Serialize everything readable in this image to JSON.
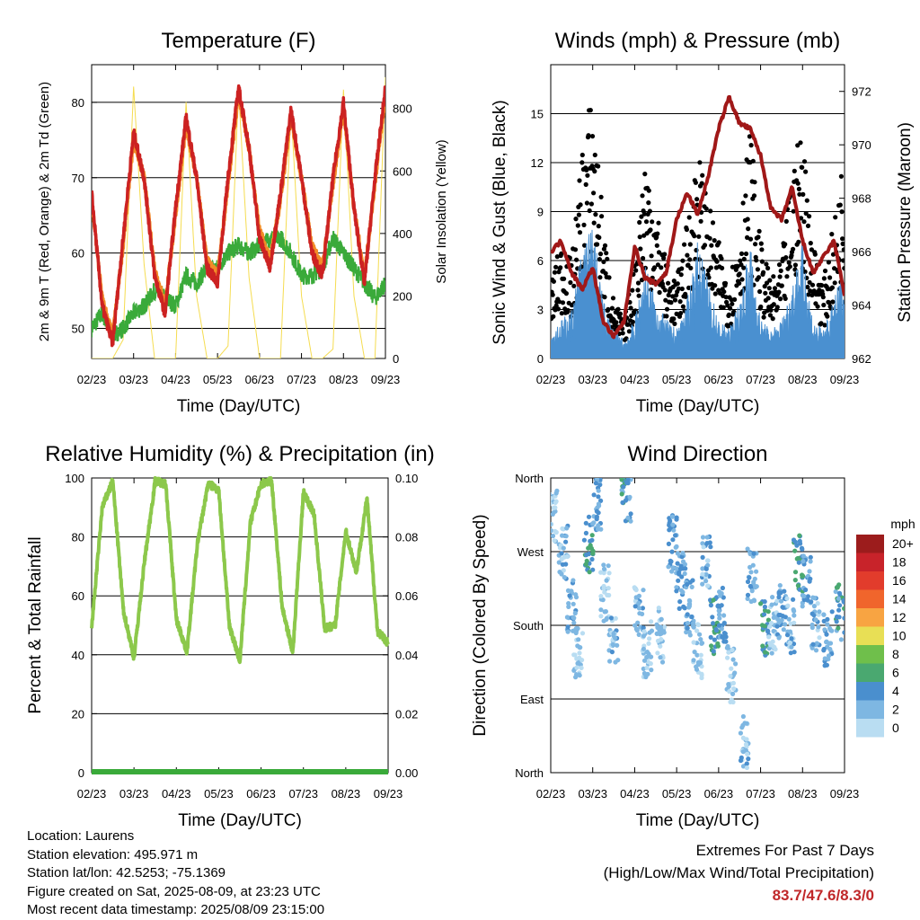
{
  "colors": {
    "temp2m": "#cc2222",
    "temp9m": "#f28c28",
    "dewpoint": "#3aaa3a",
    "solar": "#f5dc50",
    "wind": "#4a90d0",
    "gust": "#000000",
    "pressure": "#a01818",
    "rh": "#8cc84b",
    "precip": "#3aaa3a",
    "extremes": "#c0282a"
  },
  "x_ticks": [
    "02/23",
    "03/23",
    "04/23",
    "05/23",
    "06/23",
    "07/23",
    "08/23",
    "09/23"
  ],
  "panels": {
    "temperature": {
      "title": "Temperature (F)",
      "xlabel": "Time (Day/UTC)",
      "ylabel_left": "2m & 9m T (Red, Orange) & 2m Td (Green)",
      "ylabel_right": "Solar Insolation (Yellow)",
      "left_ticks": [
        "50",
        "60",
        "70",
        "80"
      ],
      "right_ticks": [
        "0",
        "200",
        "400",
        "600",
        "800"
      ]
    },
    "winds": {
      "title": "Winds (mph) & Pressure (mb)",
      "xlabel": "Time (Day/UTC)",
      "ylabel_left": "Sonic Wind & Gust (Blue, Black)",
      "ylabel_right": "Station Pressure (Maroon)",
      "left_ticks": [
        "0",
        "3",
        "6",
        "9",
        "12",
        "15"
      ],
      "right_ticks": [
        "962",
        "964",
        "966",
        "968",
        "970",
        "972"
      ]
    },
    "humidity": {
      "title": "Relative Humidity (%) & Precipitation (in)",
      "xlabel": "Time (Day/UTC)",
      "ylabel_left": "Percent & Total Rainfall",
      "left_ticks": [
        "0",
        "20",
        "40",
        "60",
        "80",
        "100"
      ],
      "right_ticks": [
        "0.00",
        "0.02",
        "0.04",
        "0.06",
        "0.08",
        "0.10"
      ]
    },
    "direction": {
      "title": "Wind Direction",
      "xlabel": "Time (Day/UTC)",
      "ylabel_left": "Direction (Colored By Speed)",
      "left_ticks": [
        "North",
        "East",
        "South",
        "West",
        "North"
      ],
      "legend_title": "mph",
      "legend_labels": [
        "20+",
        "18",
        "16",
        "14",
        "12",
        "10",
        "8",
        "6",
        "4",
        "2",
        "0"
      ],
      "legend_colors": [
        "#9c1c1c",
        "#c8232a",
        "#e23c2c",
        "#f0652c",
        "#f8a442",
        "#e8df55",
        "#6fbf4b",
        "#4aa870",
        "#4a8fce",
        "#7eb7e2",
        "#b9ddf2"
      ]
    }
  },
  "info": {
    "location": "Location: Laurens",
    "elevation": "Station elevation: 495.971 m",
    "latlon": "Station lat/lon: 42.5253; -75.1369",
    "created": "Figure created on Sat, 2025-08-09, at 23:23 UTC",
    "recent": "Most recent data timestamp: 2025/08/09 23:15:00"
  },
  "extremes": {
    "heading": "Extremes For Past 7 Days",
    "subheading": "(High/Low/Max Wind/Total Precipitation)",
    "values": "83.7/47.6/8.3/0"
  },
  "chart_data": [
    {
      "type": "line",
      "title": "Temperature (F)",
      "xlabel": "Time (Day/UTC)",
      "ylabel": "2m & 9m T (Red, Orange) & 2m Td (Green)",
      "y2label": "Solar Insolation (Yellow)",
      "ylim": [
        46,
        85
      ],
      "y2lim": [
        0,
        940
      ],
      "x": [
        0,
        0.25,
        0.5,
        0.75,
        1.0,
        1.25,
        1.5,
        1.75,
        2.0,
        2.25,
        2.5,
        2.75,
        3.0,
        3.25,
        3.5,
        3.75,
        4.0,
        4.25,
        4.5,
        4.75,
        5.0,
        5.25,
        5.5,
        5.75,
        6.0,
        6.25,
        6.5,
        6.75,
        7.0
      ],
      "series": [
        {
          "name": "2m T",
          "values": [
            68,
            53,
            48,
            62,
            76,
            70,
            57,
            52,
            66,
            78,
            70,
            58,
            56,
            70,
            82,
            74,
            62,
            58,
            68,
            79,
            70,
            60,
            57,
            70,
            80,
            66,
            56,
            70,
            82
          ]
        },
        {
          "name": "9m T",
          "values": [
            67,
            54,
            49,
            61,
            75,
            70,
            58,
            53,
            65,
            77,
            70,
            59,
            57,
            69,
            81,
            74,
            63,
            59,
            67,
            78,
            70,
            61,
            58,
            69,
            79,
            66,
            57,
            69,
            81
          ]
        },
        {
          "name": "2m Td",
          "values": [
            50,
            52,
            49,
            50,
            52,
            53,
            55,
            54,
            53,
            57,
            56,
            58,
            58,
            60,
            61,
            60,
            61,
            62,
            62,
            60,
            57,
            57,
            58,
            62,
            60,
            58,
            56,
            54,
            56
          ]
        },
        {
          "name": "Solar",
          "values": [
            0,
            0,
            0,
            60,
            870,
            300,
            0,
            0,
            0,
            820,
            200,
            0,
            0,
            40,
            860,
            260,
            0,
            0,
            0,
            800,
            200,
            0,
            0,
            30,
            860,
            200,
            0,
            0,
            900
          ]
        }
      ]
    },
    {
      "type": "line",
      "title": "Winds (mph) & Pressure (mb)",
      "xlabel": "Time (Day/UTC)",
      "ylabel": "Sonic Wind & Gust (Blue, Black)",
      "y2label": "Station Pressure (Maroon)",
      "ylim": [
        0,
        18
      ],
      "y2lim": [
        962,
        973
      ],
      "x": [
        0,
        0.25,
        0.5,
        0.75,
        1.0,
        1.25,
        1.5,
        1.75,
        2.0,
        2.25,
        2.5,
        2.75,
        3.0,
        3.25,
        3.5,
        3.75,
        4.0,
        4.25,
        4.5,
        4.75,
        5.0,
        5.25,
        5.5,
        5.75,
        6.0,
        6.25,
        6.5,
        6.75,
        7.0
      ],
      "series": [
        {
          "name": "Pressure",
          "values": [
            966,
            966.4,
            965.2,
            964.6,
            965.4,
            963.4,
            962.8,
            963.4,
            966.2,
            965.0,
            964.8,
            965.2,
            967.2,
            968.2,
            967.4,
            968.8,
            970.6,
            971.8,
            970.8,
            970.6,
            969.6,
            967.6,
            967.2,
            968.4,
            966.4,
            965.2,
            965.8,
            966.4,
            964.4
          ]
        },
        {
          "name": "Wind",
          "values": [
            1.5,
            2,
            2.5,
            6,
            7,
            3,
            1.5,
            1,
            2,
            5,
            3,
            2,
            1.5,
            3,
            6,
            4,
            2,
            1.5,
            3,
            6,
            2,
            1.5,
            2,
            4,
            6,
            2,
            1.5,
            3,
            5
          ]
        },
        {
          "name": "Gust",
          "values": [
            4,
            6,
            5,
            11,
            14,
            7,
            3,
            2,
            5,
            11,
            8,
            5,
            4,
            7,
            11,
            8,
            6,
            4,
            7,
            12,
            6,
            4,
            5,
            10,
            12,
            6,
            4,
            7,
            11
          ]
        }
      ]
    },
    {
      "type": "line",
      "title": "Relative Humidity (%) & Precipitation (in)",
      "xlabel": "Time (Day/UTC)",
      "ylabel": "Percent & Total Rainfall",
      "ylim": [
        0,
        100
      ],
      "y2lim": [
        0,
        0.1
      ],
      "x": [
        0,
        0.25,
        0.5,
        0.75,
        1.0,
        1.25,
        1.5,
        1.75,
        2.0,
        2.25,
        2.5,
        2.75,
        3.0,
        3.25,
        3.5,
        3.75,
        4.0,
        4.25,
        4.5,
        4.75,
        5.0,
        5.25,
        5.5,
        5.75,
        6.0,
        6.25,
        6.5,
        6.75,
        7.0
      ],
      "series": [
        {
          "name": "RH",
          "values": [
            49,
            90,
            99,
            55,
            39,
            72,
            99,
            98,
            52,
            41,
            78,
            98,
            96,
            50,
            38,
            85,
            98,
            99,
            56,
            41,
            95,
            88,
            49,
            50,
            82,
            68,
            93,
            48,
            44
          ]
        },
        {
          "name": "Precipitation",
          "values": [
            0,
            0,
            0,
            0,
            0,
            0,
            0,
            0,
            0,
            0,
            0,
            0,
            0,
            0,
            0,
            0,
            0,
            0,
            0,
            0,
            0,
            0,
            0,
            0,
            0,
            0,
            0,
            0,
            0
          ]
        }
      ]
    },
    {
      "type": "scatter",
      "title": "Wind Direction",
      "xlabel": "Time (Day/UTC)",
      "ylabel": "Direction (Colored By Speed)",
      "ylim": [
        0,
        360
      ],
      "x": [
        0.05,
        0.3,
        0.5,
        0.65,
        0.9,
        1.1,
        1.3,
        1.5,
        1.8,
        2.1,
        2.3,
        2.6,
        2.9,
        3.1,
        3.3,
        3.5,
        3.7,
        3.9,
        4.1,
        4.3,
        4.6,
        4.8,
        5.1,
        5.3,
        5.5,
        5.7,
        5.9,
        6.1,
        6.3,
        6.6,
        6.9
      ],
      "series": [
        {
          "name": "Direction",
          "values": [
            315,
            270,
            200,
            150,
            280,
            330,
            220,
            160,
            340,
            195,
            150,
            170,
            280,
            235,
            200,
            150,
            260,
            180,
            195,
            120,
            40,
            240,
            175,
            180,
            195,
            180,
            255,
            230,
            180,
            165,
            195
          ]
        },
        {
          "name": "Speed",
          "values": [
            2,
            3,
            4,
            2,
            6,
            4,
            2,
            3,
            5,
            3,
            2,
            2,
            4,
            4,
            4,
            2,
            3,
            6,
            4,
            2,
            3,
            4,
            6,
            2,
            4,
            3,
            6,
            4,
            3,
            4,
            5
          ]
        }
      ]
    }
  ]
}
